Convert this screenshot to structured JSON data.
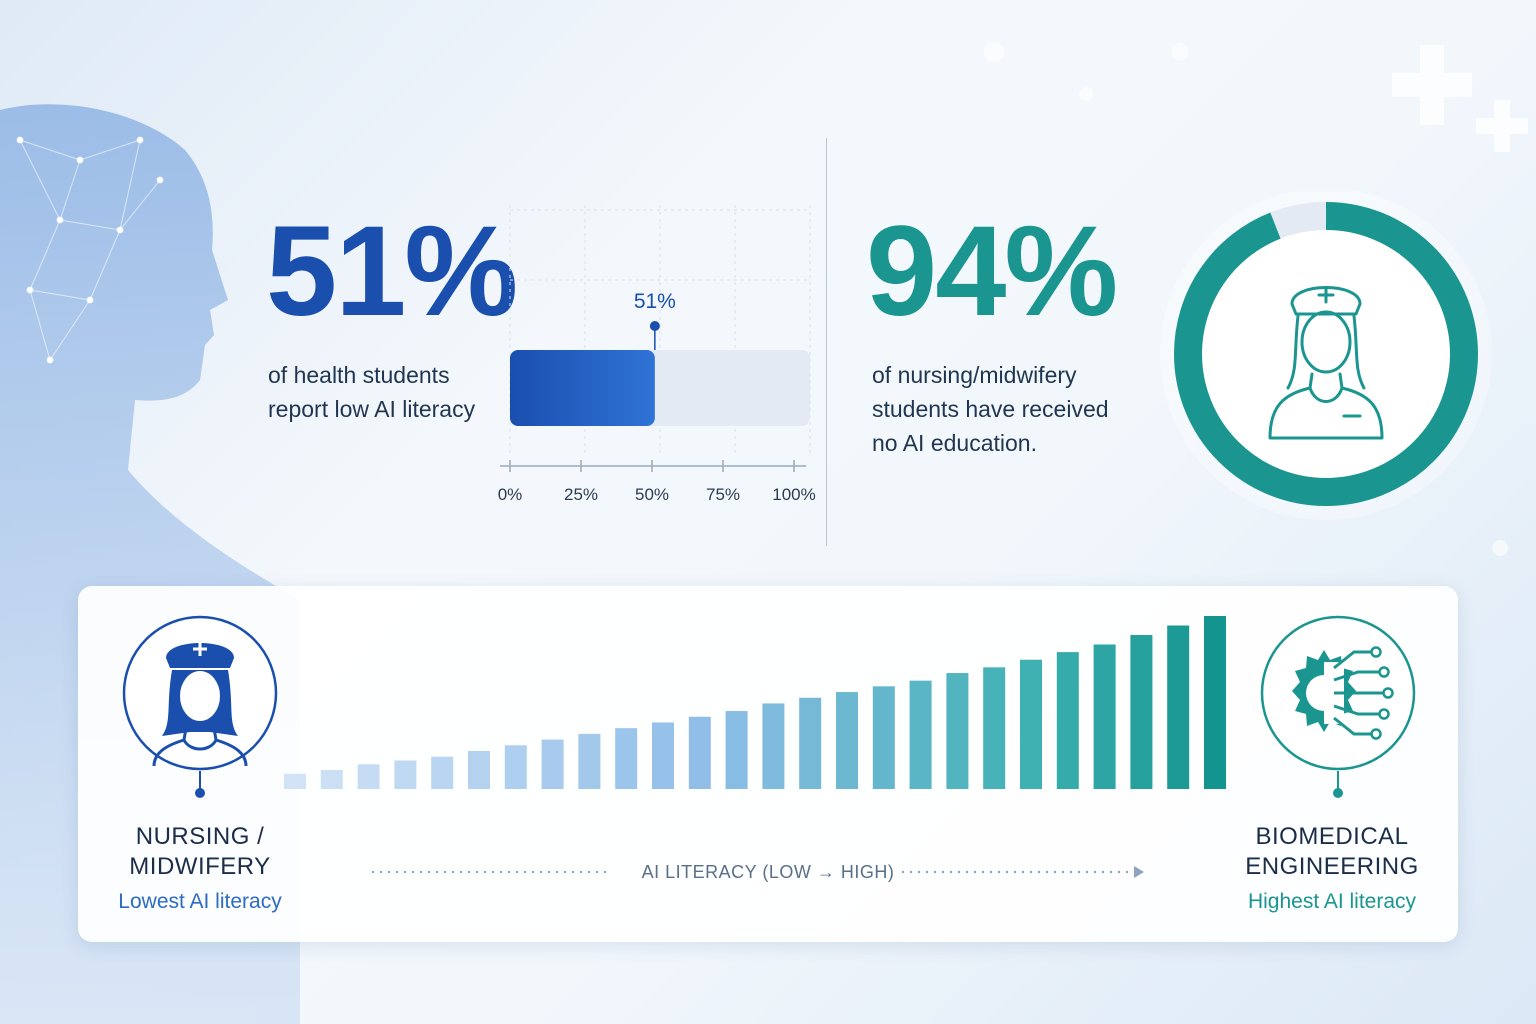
{
  "stat_left": {
    "value": "51%",
    "description_line1": "of health students",
    "description_line2": "report low AI literacy"
  },
  "stat_right": {
    "value": "94%",
    "description_line1": "of nursing/midwifery",
    "description_line2": "students have received",
    "description_line3": "no AI education."
  },
  "colors": {
    "blue": "#1a4fae",
    "teal": "#1b9590",
    "track": "#e3eaf3"
  },
  "bottom_panel": {
    "left_title_line1": "NURSING /",
    "left_title_line2": "MIDWIFERY",
    "left_subtitle": "Lowest AI literacy",
    "right_title_line1": "BIOMEDICAL",
    "right_title_line2": "ENGINEERING",
    "right_subtitle": "Highest AI literacy",
    "axis_label": "AI LITERACY (LOW → HIGH)",
    "left_icon": "nurse-icon",
    "right_icon": "gear-circuit-icon"
  },
  "chart_data": [
    {
      "type": "bar",
      "orientation": "horizontal",
      "values": [
        51
      ],
      "data_label": "51%",
      "xlim": [
        0,
        100
      ],
      "tick_labels": [
        "0%",
        "25%",
        "50%",
        "75%",
        "100%"
      ],
      "ticks": [
        0,
        25,
        50,
        75,
        100
      ],
      "grid": true
    },
    {
      "type": "pie",
      "style": "donut",
      "values": [
        94,
        6
      ],
      "center_icon": "nurse-icon"
    },
    {
      "type": "bar",
      "values": [
        8,
        10,
        13,
        15,
        17,
        20,
        23,
        26,
        29,
        32,
        35,
        38,
        41,
        45,
        48,
        51,
        54,
        57,
        61,
        64,
        68,
        72,
        76,
        81,
        86,
        91
      ]
    }
  ]
}
